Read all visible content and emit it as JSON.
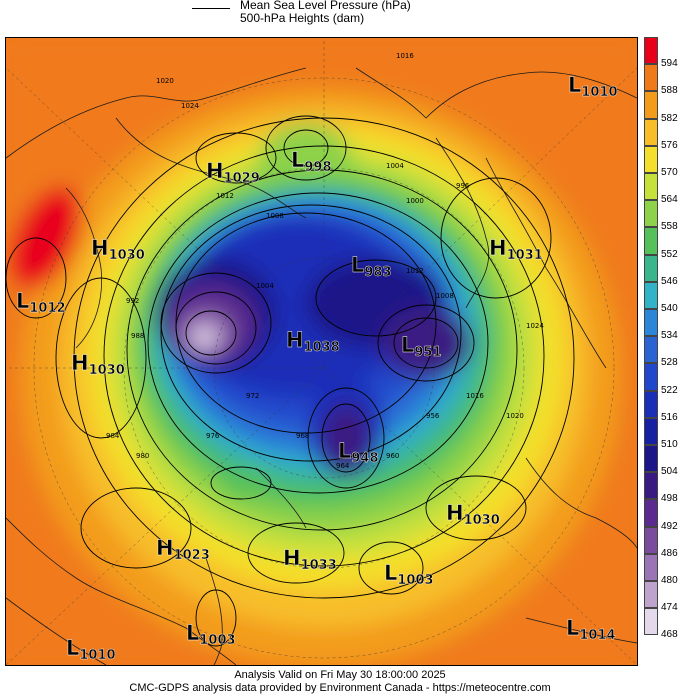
{
  "header": {
    "line1": "Mean Sea Level Pressure (hPa)",
    "line2": "500-hPa Heights (dam)"
  },
  "colorbar": {
    "levels": [
      "594",
      "588",
      "582",
      "576",
      "570",
      "564",
      "558",
      "552",
      "546",
      "540",
      "534",
      "528",
      "522",
      "516",
      "510",
      "504",
      "498",
      "492",
      "486",
      "480",
      "474",
      "468"
    ],
    "colors": [
      "#e8001a",
      "#f07a1a",
      "#f39c1c",
      "#f7be2a",
      "#f4df2c",
      "#c6e13c",
      "#8dd24a",
      "#54c15a",
      "#3ab58c",
      "#32b3c7",
      "#2c86d8",
      "#2b63d3",
      "#2148cc",
      "#1a2fb8",
      "#1620a2",
      "#1d1689",
      "#3a1a82",
      "#5a2a8e",
      "#7a4c9e",
      "#9a74b4",
      "#bea4cc",
      "#e4d8ec"
    ]
  },
  "pressure_centers": [
    {
      "type": "L",
      "value": "1010"
    },
    {
      "type": "H",
      "value": "1029"
    },
    {
      "type": "L",
      "value": "998"
    },
    {
      "type": "H",
      "value": "1030"
    },
    {
      "type": "L",
      "value": "1012"
    },
    {
      "type": "H",
      "value": "1030"
    },
    {
      "type": "L",
      "value": "983"
    },
    {
      "type": "H",
      "value": "1031"
    },
    {
      "type": "H",
      "value": "1038"
    },
    {
      "type": "L",
      "value": "951"
    },
    {
      "type": "L",
      "value": "948"
    },
    {
      "type": "H",
      "value": "1030"
    },
    {
      "type": "H",
      "value": "1023"
    },
    {
      "type": "H",
      "value": "1033"
    },
    {
      "type": "L",
      "value": "1003"
    },
    {
      "type": "L",
      "value": "1010"
    },
    {
      "type": "L",
      "value": "1003"
    },
    {
      "type": "L",
      "value": "1014"
    }
  ],
  "isobar_labels": [
    "1016",
    "1020",
    "1024",
    "1012",
    "1008",
    "1004",
    "1000",
    "996",
    "992",
    "988",
    "984",
    "980",
    "976",
    "972",
    "968",
    "964",
    "960",
    "956"
  ],
  "footer": {
    "line1": "Analysis Valid on Fri May 30 18:00:00 2025",
    "line2": "CMC-GDPS analysis data provided by Environment Canada - https://meteocentre.com"
  }
}
